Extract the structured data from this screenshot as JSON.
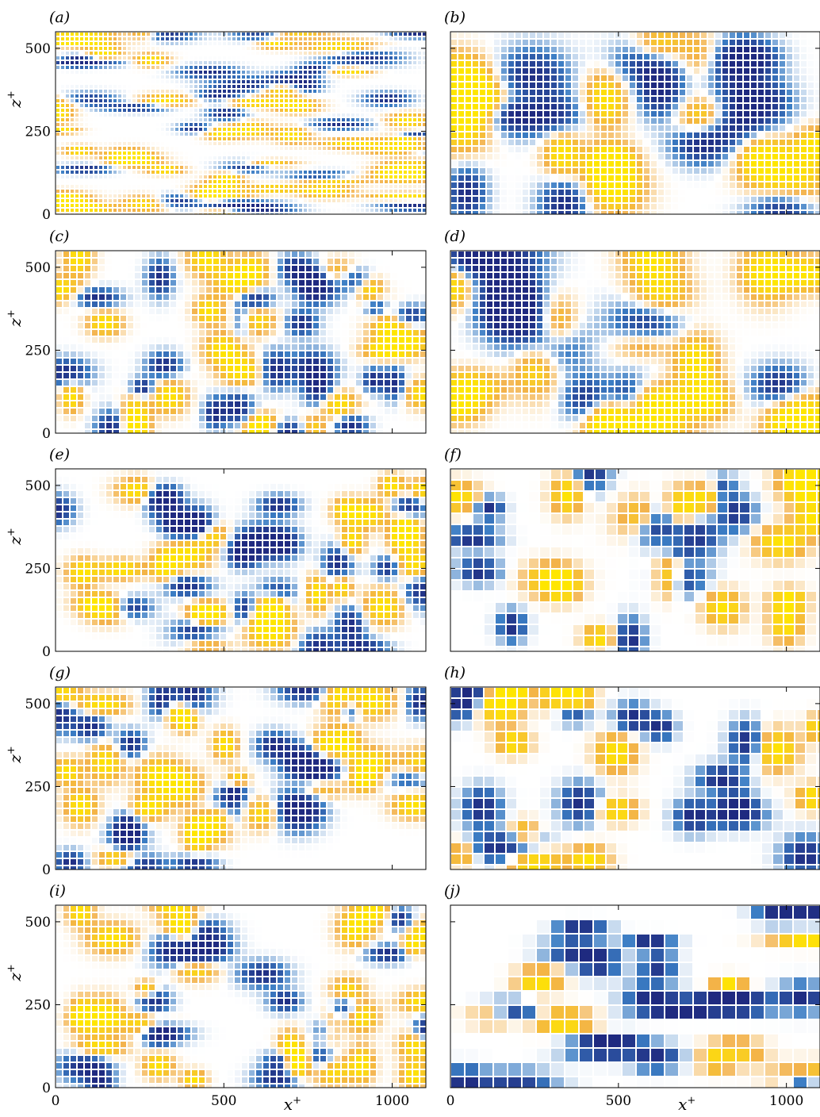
{
  "figure": {
    "colormap": [
      "#1f2a80",
      "#3b7dc4",
      "#ffffff",
      "#f3b24a",
      "#ffe600"
    ]
  },
  "chart_data": {
    "type": "heatmap",
    "description_axes": {
      "xlabel": "x⁺",
      "ylabel": "z⁺",
      "xlim": [
        0,
        1100
      ],
      "ylim": [
        0,
        550
      ],
      "xticks": [
        0,
        500,
        1000
      ],
      "yticks": [
        0,
        250,
        500
      ]
    },
    "panels": [
      {
        "label": "(a)",
        "column": "left",
        "row": 0,
        "pattern": "streaky-fine"
      },
      {
        "label": "(b)",
        "column": "right",
        "row": 0,
        "pattern": "large-blobs"
      },
      {
        "label": "(c)",
        "column": "left",
        "row": 1,
        "pattern": "medium-blobs"
      },
      {
        "label": "(d)",
        "column": "right",
        "row": 1,
        "pattern": "large-blobs"
      },
      {
        "label": "(e)",
        "column": "left",
        "row": 2,
        "pattern": "medium-blobs"
      },
      {
        "label": "(f)",
        "column": "right",
        "row": 2,
        "pattern": "coarse-grid"
      },
      {
        "label": "(g)",
        "column": "left",
        "row": 3,
        "pattern": "medium-blobs"
      },
      {
        "label": "(h)",
        "column": "right",
        "row": 3,
        "pattern": "coarse-grid"
      },
      {
        "label": "(i)",
        "column": "left",
        "row": 4,
        "pattern": "medium-blobs"
      },
      {
        "label": "(j)",
        "column": "right",
        "row": 4,
        "pattern": "very-coarse-grid"
      }
    ],
    "tick_labels": {
      "x": [
        "0",
        "500",
        "1000"
      ],
      "y": [
        "0",
        "250",
        "500"
      ]
    },
    "axis_labels": {
      "x": "x",
      "x_sup": "+",
      "y": "z",
      "y_sup": "+"
    }
  }
}
